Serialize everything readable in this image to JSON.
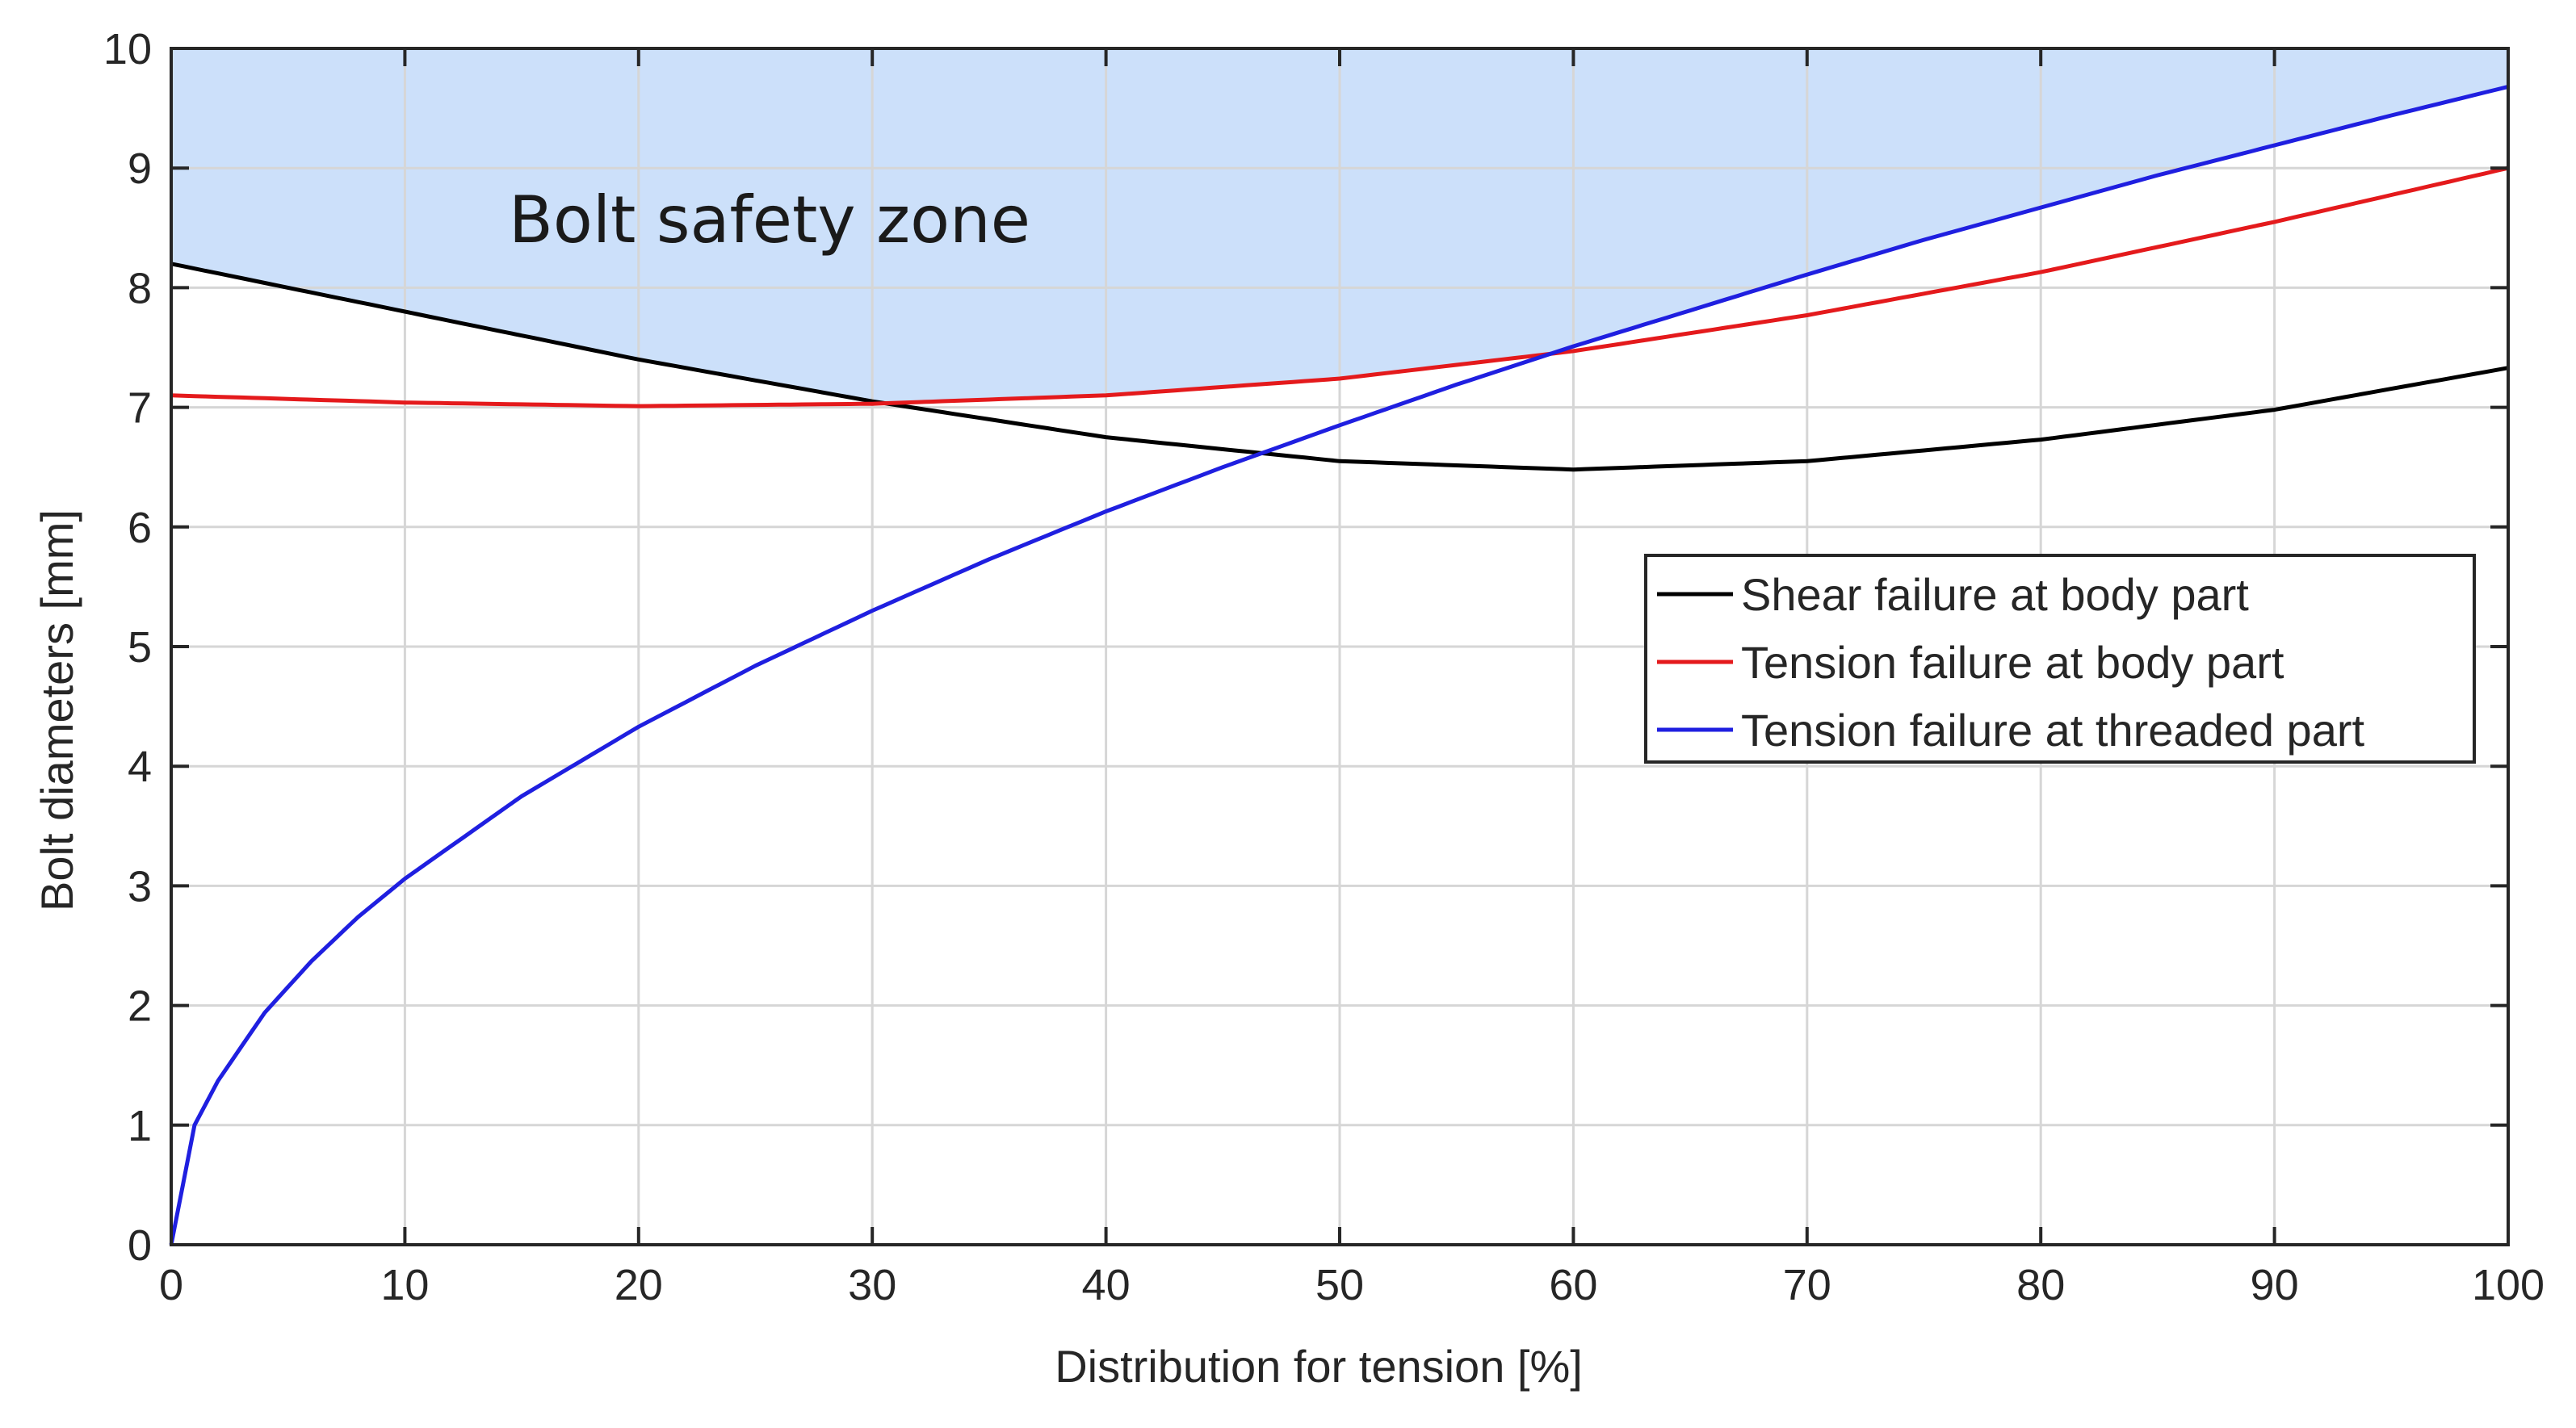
{
  "chart_data": {
    "type": "line",
    "title": "",
    "xlabel": "Distribution for tension [%]",
    "ylabel": "Bolt diameters [mm]",
    "xlim": [
      0,
      100
    ],
    "ylim": [
      0,
      10
    ],
    "xticks": [
      0,
      10,
      20,
      30,
      40,
      50,
      60,
      70,
      80,
      90,
      100
    ],
    "yticks": [
      0,
      1,
      2,
      3,
      4,
      5,
      6,
      7,
      8,
      9,
      10
    ],
    "grid": true,
    "legend_position": "right",
    "annotation": "Bolt safety zone",
    "safety_zone_color": "#cce0fa",
    "series": [
      {
        "name": "Shear failure at body part",
        "color": "#000000",
        "x": [
          0,
          10,
          20,
          30,
          40,
          50,
          60,
          70,
          80,
          90,
          100
        ],
        "y": [
          8.2,
          7.8,
          7.4,
          7.05,
          6.75,
          6.55,
          6.48,
          6.55,
          6.73,
          6.98,
          7.33
        ]
      },
      {
        "name": "Tension failure at body part",
        "color": "#e41a1c",
        "x": [
          0,
          10,
          20,
          30,
          40,
          50,
          60,
          70,
          80,
          90,
          100
        ],
        "y": [
          7.1,
          7.04,
          7.01,
          7.03,
          7.1,
          7.24,
          7.47,
          7.77,
          8.13,
          8.55,
          9.0
        ]
      },
      {
        "name": "Tension failure at threaded part",
        "color": "#1f1fe0",
        "x": [
          0,
          1,
          2,
          4,
          6,
          8,
          10,
          15,
          20,
          25,
          30,
          35,
          40,
          45,
          50,
          55,
          60,
          65,
          70,
          75,
          80,
          85,
          90,
          95,
          100
        ],
        "y": [
          0,
          1.0,
          1.37,
          1.94,
          2.37,
          2.74,
          3.06,
          3.75,
          4.33,
          4.84,
          5.3,
          5.73,
          6.13,
          6.5,
          6.85,
          7.19,
          7.51,
          7.81,
          8.11,
          8.4,
          8.67,
          8.94,
          9.19,
          9.44,
          9.68
        ]
      }
    ]
  }
}
